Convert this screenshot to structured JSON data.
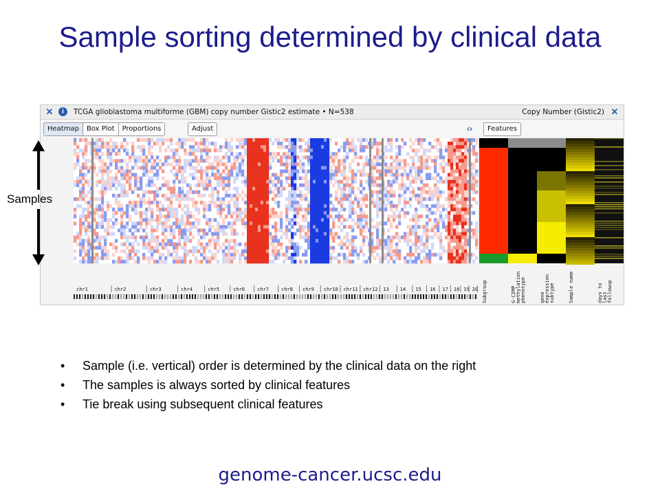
{
  "slide": {
    "title": "Sample sorting determined by clinical data",
    "samples_label": "Samples",
    "footer": "genome-cancer.ucsc.edu",
    "bullets": [
      "Sample (i.e. vertical) order is determined by the clinical data on the right",
      "The samples is always sorted by clinical features",
      "Tie break using subsequent clinical features"
    ]
  },
  "app": {
    "title_text": "TCGA glioblastoma multiforme (GBM) copy number Gistic2 estimate • N=538",
    "right_title": "Copy Number (Gistic2)",
    "icons": {
      "close": "close-icon",
      "info": "info-icon",
      "swap": "swap-arrows-icon"
    },
    "tabs": [
      {
        "label": "Heatmap",
        "active": true
      },
      {
        "label": "Box Plot",
        "active": false
      },
      {
        "label": "Proportions",
        "active": false
      }
    ],
    "adjust_label": "Adjust",
    "features_label": "Features",
    "chromosomes": [
      "chr1",
      "chr2",
      "chr3",
      "chr4",
      "chr5",
      "chr6",
      "chr7",
      "chr8",
      "chr9",
      "chr10",
      "chr11",
      "chr12",
      "13",
      "14",
      "15",
      "16",
      "17",
      "18",
      "19",
      "20"
    ],
    "clinical_columns": [
      "Subgroup",
      "G-CIMP methylation phenotype",
      "gene expression subtype",
      "Sample name",
      "days to last followup"
    ],
    "colors": {
      "amplification": "#e8321e",
      "deletion": "#1a3be0",
      "neutral": "#ffffff",
      "clinical_yellow": "#f5ec00",
      "clinical_red": "#ff2a00",
      "clinical_green": "#1a9a2a",
      "title_blue": "#1c1c8c"
    }
  }
}
